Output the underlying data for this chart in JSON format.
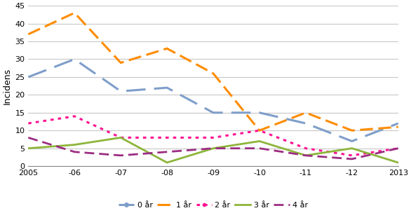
{
  "x_labels": [
    "2005",
    "-06",
    "-07",
    "-08",
    "-09",
    "-10",
    "-11",
    "-12",
    "2013"
  ],
  "x_values": [
    2005,
    2006,
    2007,
    2008,
    2009,
    2010,
    2011,
    2012,
    2013
  ],
  "series": {
    "0 år": {
      "values": [
        25,
        30,
        21,
        22,
        15,
        15,
        12,
        7,
        12
      ],
      "color": "#7F9EC9",
      "linestyle": "dash_dot",
      "linewidth": 2.2
    },
    "1 år": {
      "values": [
        37,
        43,
        29,
        33,
        26,
        10,
        15,
        10,
        11
      ],
      "color": "#FF8C00",
      "linestyle": "dashed",
      "linewidth": 2.2
    },
    "2 år": {
      "values": [
        12,
        14,
        8,
        8,
        8,
        10,
        5,
        3,
        5
      ],
      "color": "#FF1493",
      "linestyle": "dotted",
      "linewidth": 2.2
    },
    "3 år": {
      "values": [
        5,
        6,
        8,
        1,
        5,
        7,
        3,
        5,
        1
      ],
      "color": "#8DB53A",
      "linestyle": "solid",
      "linewidth": 2.2
    },
    "4 år": {
      "values": [
        8,
        4,
        3,
        4,
        5,
        5,
        3,
        2,
        5
      ],
      "color": "#9B2D82",
      "linestyle": "dashed2",
      "linewidth": 2.2
    }
  },
  "ylabel": "Incidens",
  "ylim": [
    0,
    45
  ],
  "yticks": [
    0,
    5,
    10,
    15,
    20,
    25,
    30,
    35,
    40,
    45
  ],
  "background_color": "#FFFFFF",
  "grid_color": "#C8C8C8",
  "tick_fontsize": 8,
  "label_fontsize": 9
}
